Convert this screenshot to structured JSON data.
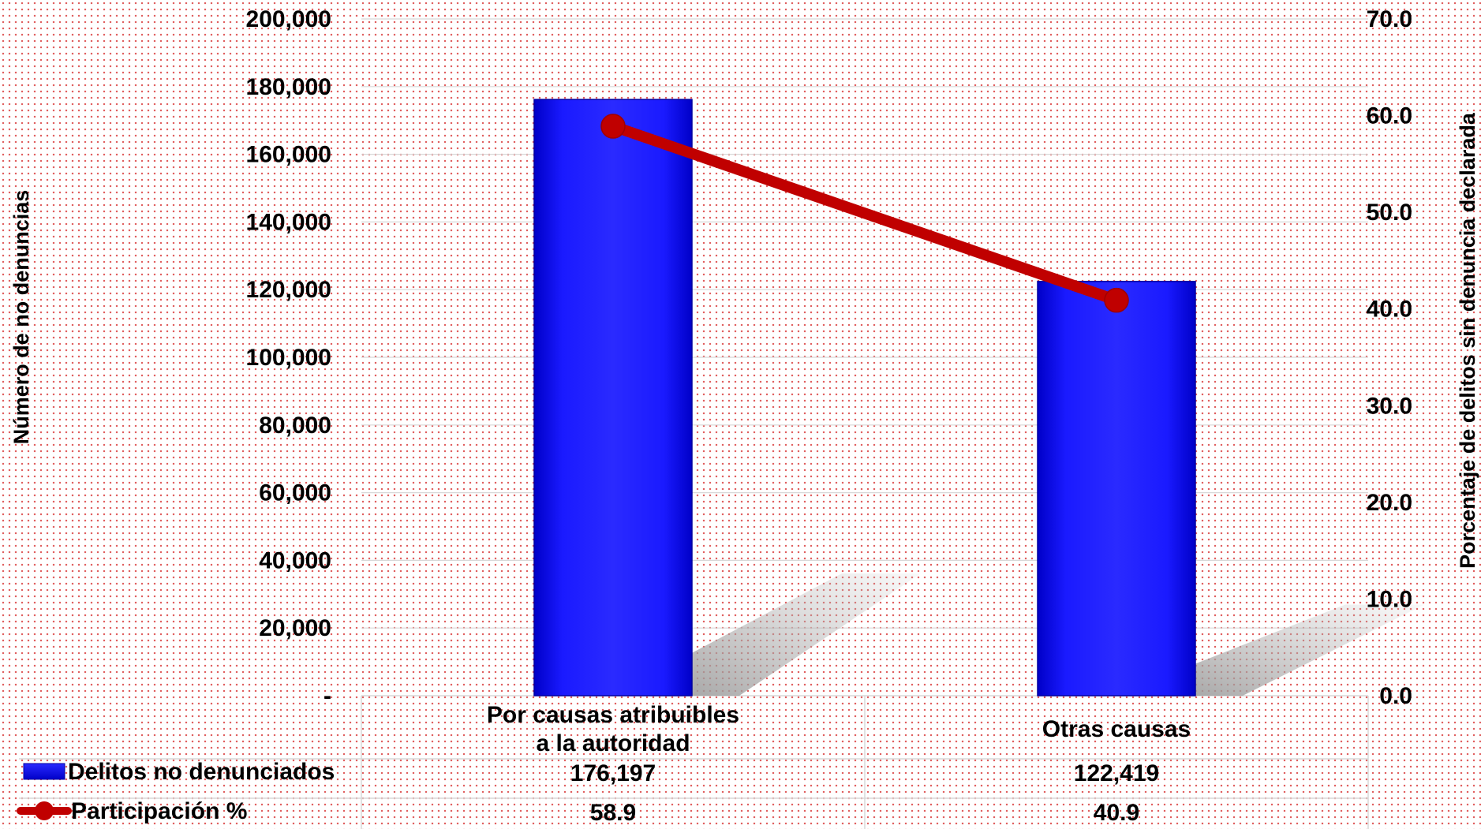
{
  "chart_data": {
    "type": "bar",
    "categories": [
      [
        "Por causas atribuibles",
        "a la autoridad"
      ],
      [
        "Otras causas"
      ]
    ],
    "series": [
      {
        "name": "Delitos no denunciados",
        "type": "bar",
        "axis": "left",
        "color": "#1010ff",
        "values": [
          176197,
          122419
        ],
        "labels": [
          "176,197",
          "122,419"
        ]
      },
      {
        "name": "Participación %",
        "type": "line",
        "axis": "right",
        "color": "#c00000",
        "values": [
          58.9,
          40.9
        ],
        "labels": [
          "58.9",
          "40.9"
        ]
      }
    ],
    "y_left": {
      "label": "Número de no denuncias",
      "range": [
        0,
        200000
      ],
      "ticks": [
        "-",
        "20,000",
        "40,000",
        "60,000",
        "80,000",
        "100,000",
        "120,000",
        "140,000",
        "160,000",
        "180,000",
        "200,000"
      ]
    },
    "y_right": {
      "label": "Porcentaje de delitos sin denuncia declarada",
      "range": [
        0,
        70
      ],
      "ticks": [
        "0.0",
        "10.0",
        "20.0",
        "30.0",
        "40.0",
        "50.0",
        "60.0",
        "70.0"
      ]
    },
    "grid": true,
    "legend": "data-table-below"
  }
}
